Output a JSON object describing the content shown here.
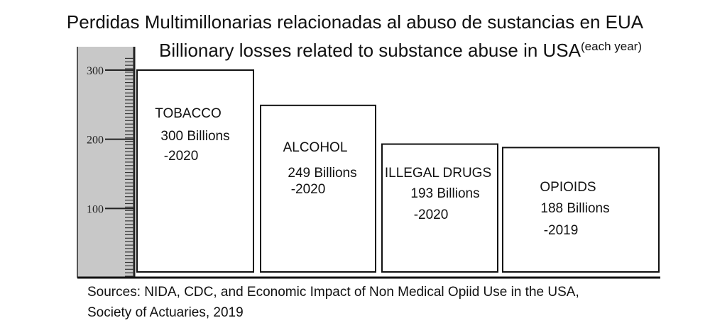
{
  "chart_data": {
    "type": "bar",
    "title": "Perdidas Multimillonarias relacionadas al abuso de sustancias en EUA",
    "subtitle": "Billionary losses related to substance abuse in USA",
    "subtitle_note": "(each year)",
    "ylim": [
      0,
      300
    ],
    "yticks": [
      100,
      200,
      300
    ],
    "grid": false,
    "categories": [
      "TOBACCO",
      "ALCOHOL",
      "ILLEGAL DRUGS",
      "OPIOIDS"
    ],
    "values": [
      300,
      249,
      193,
      188
    ],
    "value_labels": [
      "300 Billions",
      "249 Billions",
      "193 Billions",
      "188 Billions"
    ],
    "year_labels": [
      "-2020",
      "-2020",
      "-2020",
      "-2019"
    ]
  },
  "sources": {
    "line1": "Sources: NIDA, CDC, and Economic Impact of Non Medical Opiid Use in the USA,",
    "line2": "Society of Actuaries, 2019"
  },
  "colors": {
    "bar_fill": "#ffffff",
    "bar_stroke": "#111111",
    "ruler_fill": "#c8c8c8"
  }
}
